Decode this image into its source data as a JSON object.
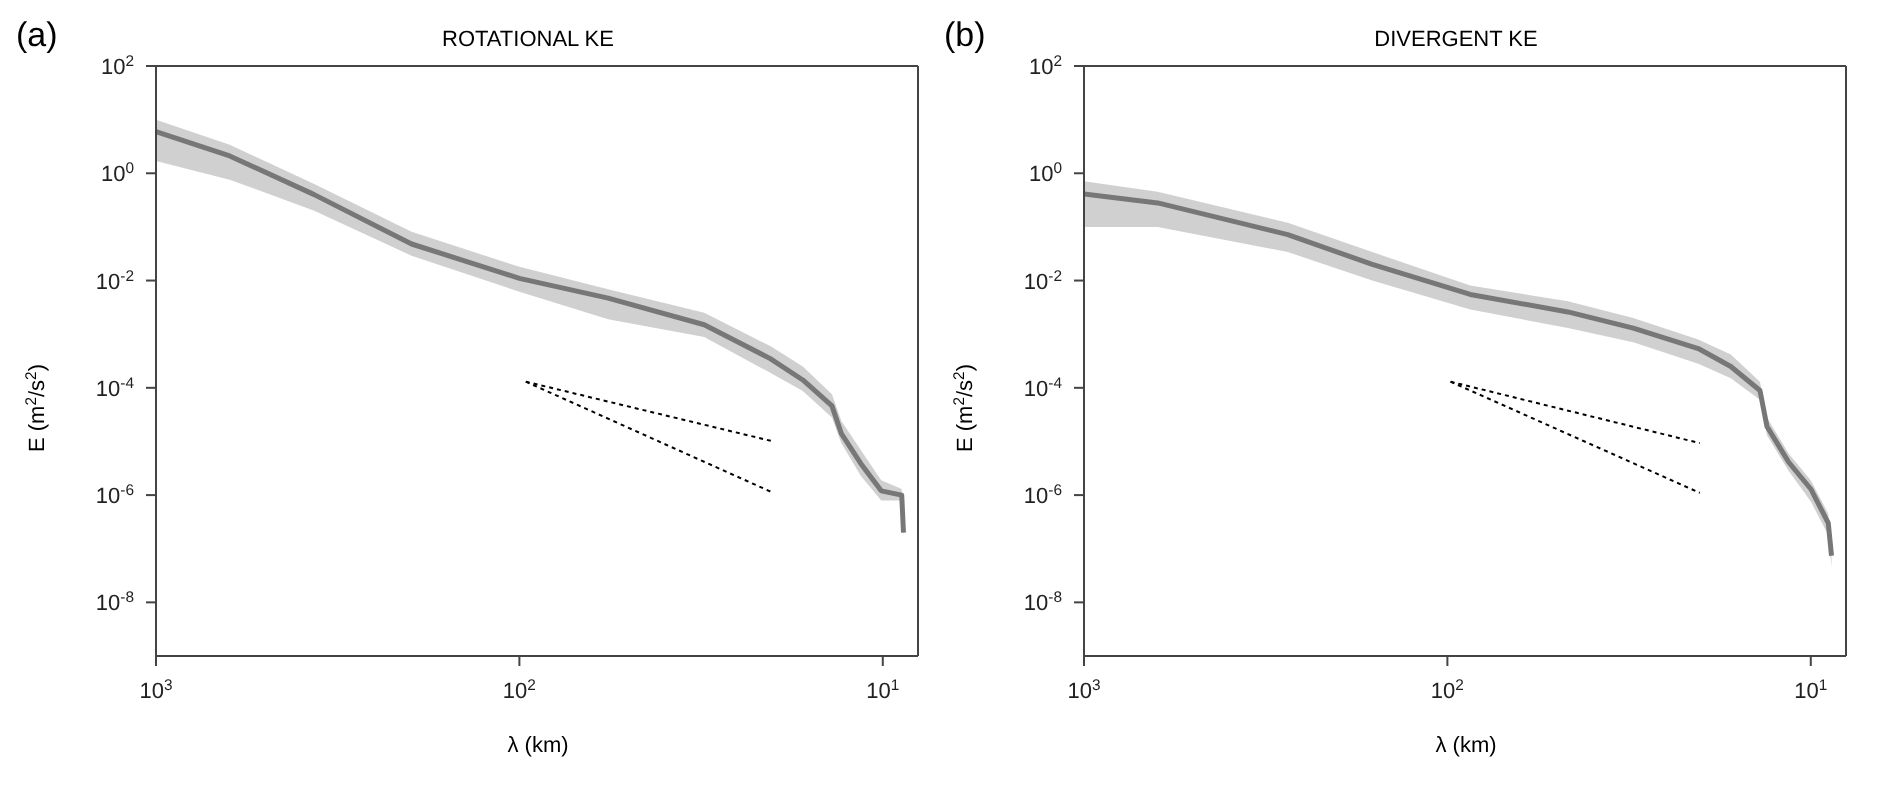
{
  "chart_data": [
    {
      "type": "line",
      "title": "ROTATIONAL KE",
      "xlabel": "λ (km)",
      "ylabel": "E (m$^{2}$/s$^{2}$)",
      "annotations": [
        "(a)"
      ],
      "log": "xy",
      "marker": "none",
      "line_style": "solid",
      "xlim": [
        1000,
        8
      ],
      "ylim": [
        1e-09,
        100
      ],
      "xticks": [
        {
          "value": 1000,
          "label": "10$^{3}$"
        },
        {
          "value": 100,
          "label": "10$^{2}$"
        },
        {
          "value": 10,
          "label": "10$^{1}$"
        }
      ],
      "yticks": [
        {
          "value": 1e-08,
          "label": "10$^{-8}$"
        },
        {
          "value": 1e-06,
          "label": "10$^{-6}$"
        },
        {
          "value": 0.0001,
          "label": "10$^{-4}$"
        },
        {
          "value": 0.01,
          "label": "10$^{-2}$"
        },
        {
          "value": 1,
          "label": "10$^{0}$"
        },
        {
          "value": 100,
          "label": "10$^{2}$"
        }
      ],
      "series": [
        {
          "color": "#777777",
          "x": [
            1000,
            627,
            367,
            198,
            100,
            57,
            31,
            20.4,
            16.6,
            13.8,
            13.0,
            11.5,
            10.1,
            8.87,
            8.77
          ],
          "values": [
            6.0,
            2.1,
            0.4,
            0.048,
            0.011,
            0.0047,
            0.0015,
            0.00035,
            0.00014,
            4.6e-05,
            1.4e-05,
            3.9e-06,
            1.2e-06,
            1e-06,
            2e-07
          ],
          "upper": [
            10,
            3.4,
            0.63,
            0.081,
            0.018,
            0.0069,
            0.0025,
            0.0006,
            0.00025,
            7.6e-05,
            2.4e-05,
            6.9e-06,
            1.9e-06,
            1.3e-06,
            2.3e-07
          ],
          "lower": [
            1.7,
            0.76,
            0.2,
            0.029,
            0.0062,
            0.0019,
            0.00089,
            0.00019,
            8.7e-05,
            2.8e-05,
            9.3e-06,
            2.3e-06,
            7.9e-07,
            7.9e-07,
            1.6e-07
          ]
        },
        {
          "color": "#000000",
          "line_style": "dotted",
          "x": [
            96,
            20
          ],
          "values": [
            0.00013,
            1e-05
          ]
        },
        {
          "color": "#000000",
          "line_style": "dotted",
          "x": [
            96,
            20
          ],
          "values": [
            0.00013,
            1.1e-06
          ]
        }
      ]
    },
    {
      "type": "line",
      "title": "DIVERGENT KE",
      "xlabel": "λ (km)",
      "ylabel": "E (m$^{2}$/s$^{2}$)",
      "annotations": [
        "(b)"
      ],
      "log": "xy",
      "marker": "none",
      "line_style": "solid",
      "xlim": [
        1000,
        8
      ],
      "ylim": [
        1e-09,
        100
      ],
      "xticks": [
        {
          "value": 1000,
          "label": "10$^{3}$"
        },
        {
          "value": 100,
          "label": "10$^{2}$"
        },
        {
          "value": 10,
          "label": "10$^{1}$"
        }
      ],
      "yticks": [
        {
          "value": 1e-08,
          "label": "10$^{-8}$"
        },
        {
          "value": 1e-06,
          "label": "10$^{-6}$"
        },
        {
          "value": 0.0001,
          "label": "10$^{-4}$"
        },
        {
          "value": 0.01,
          "label": "10$^{-2}$"
        },
        {
          "value": 1,
          "label": "10$^{0}$"
        },
        {
          "value": 100,
          "label": "10$^{2}$"
        }
      ],
      "series": [
        {
          "color": "#777777",
          "x": [
            1000,
            627,
            275,
            161,
            86.5,
            46.6,
            30.8,
            20.4,
            16.6,
            13.8,
            13.2,
            11.5,
            10.0,
            8.95,
            8.77
          ],
          "values": [
            0.41,
            0.28,
            0.072,
            0.02,
            0.0055,
            0.0026,
            0.0013,
            0.00054,
            0.00025,
            8.9e-05,
            1.9e-05,
            4.1e-06,
            1.3e-06,
            3e-07,
            7.4e-08
          ],
          "upper": [
            0.71,
            0.45,
            0.12,
            0.034,
            0.0081,
            0.0041,
            0.002,
            0.0008,
            0.00042,
            0.00013,
            2.8e-05,
            5.9e-06,
            1.9e-06,
            4.5e-07,
            1.2e-07
          ],
          "lower": [
            0.1,
            0.1,
            0.034,
            0.01,
            0.0029,
            0.0013,
            0.00071,
            0.00028,
            0.00015,
            6e-05,
            1.3e-05,
            2.8e-06,
            7.6e-07,
            1.8e-07,
            4.5e-08
          ]
        },
        {
          "color": "#000000",
          "line_style": "dotted",
          "x": [
            98,
            20.2
          ],
          "values": [
            0.00013,
            9.3e-06
          ]
        },
        {
          "color": "#000000",
          "line_style": "dotted",
          "x": [
            98,
            20.2
          ],
          "values": [
            0.00013,
            1.1e-06
          ]
        }
      ]
    }
  ]
}
